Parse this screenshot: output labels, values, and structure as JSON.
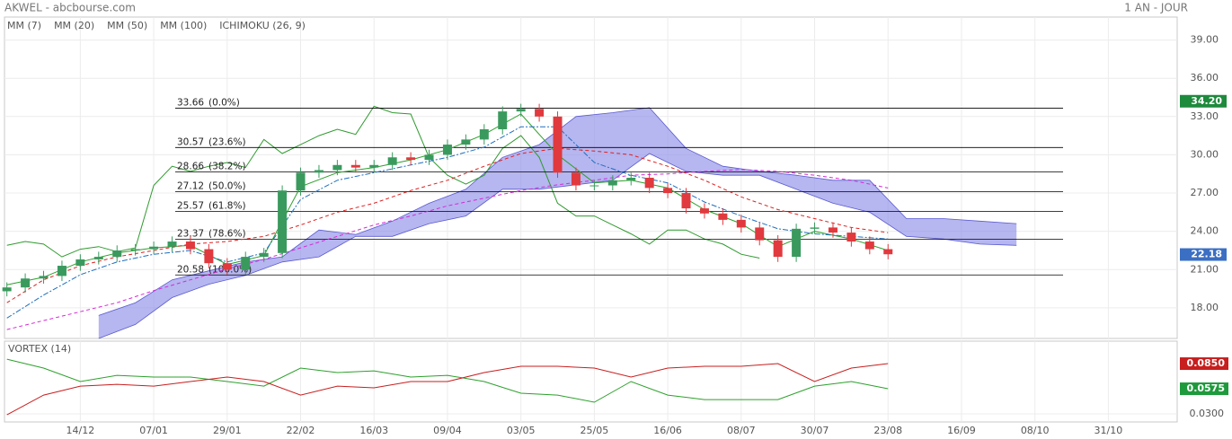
{
  "chart_data": {
    "type": "candlestick",
    "title": "AKWEL - abcbourse.com",
    "period": "1 AN - JOUR",
    "xlim": [
      -1.5,
      255
    ],
    "xticks": [
      {
        "value": 16,
        "label": "14/12"
      },
      {
        "value": 32,
        "label": "07/01"
      },
      {
        "value": 48,
        "label": "29/01"
      },
      {
        "value": 64,
        "label": "22/02"
      },
      {
        "value": 80,
        "label": "16/03"
      },
      {
        "value": 96,
        "label": "09/04"
      },
      {
        "value": 112,
        "label": "03/05"
      },
      {
        "value": 128,
        "label": "25/05"
      },
      {
        "value": 144,
        "label": "16/06"
      },
      {
        "value": 160,
        "label": "08/07"
      },
      {
        "value": 176,
        "label": "30/07"
      },
      {
        "value": 192,
        "label": "23/08"
      },
      {
        "value": 208,
        "label": "16/09"
      },
      {
        "value": 224,
        "label": "08/10"
      },
      {
        "value": 240,
        "label": "31/10"
      }
    ],
    "ylim": [
      15.6,
      40.8
    ],
    "yticks": [
      {
        "value": 18,
        "label": "18.00"
      },
      {
        "value": 21,
        "label": "21.00"
      },
      {
        "value": 24,
        "label": "24.00"
      },
      {
        "value": 27,
        "label": "27.00"
      },
      {
        "value": 30,
        "label": "30.00"
      },
      {
        "value": 33,
        "label": "33.00"
      },
      {
        "value": 36,
        "label": "36.00"
      },
      {
        "value": 39,
        "label": "39.00"
      }
    ],
    "grid": true,
    "candles": {
      "up_color": "#3a9a5e",
      "down_color": "#e0393e",
      "x": [
        0,
        4,
        8,
        12,
        16,
        20,
        24,
        28,
        32,
        36,
        40,
        44,
        48,
        52,
        56,
        60,
        64,
        68,
        72,
        76,
        80,
        84,
        88,
        92,
        96,
        100,
        104,
        108,
        112,
        116,
        120,
        124,
        128,
        132,
        136,
        140,
        144,
        148,
        152,
        156,
        160,
        164,
        168,
        172,
        176,
        180,
        184,
        188,
        192
      ],
      "open": [
        19.3,
        19.6,
        20.3,
        20.5,
        21.3,
        21.8,
        22.0,
        22.5,
        22.6,
        22.8,
        23.2,
        22.6,
        21.5,
        21.0,
        22.0,
        22.3,
        27.2,
        28.6,
        28.8,
        29.2,
        29.0,
        29.2,
        29.8,
        29.6,
        30.0,
        30.8,
        31.2,
        32.0,
        33.4,
        33.6,
        33.0,
        28.6,
        27.6,
        27.6,
        28.0,
        28.2,
        27.4,
        27.0,
        25.8,
        25.4,
        24.9,
        24.3,
        23.3,
        22.0,
        24.2,
        24.3,
        23.9,
        23.2,
        22.6
      ],
      "high": [
        20.0,
        20.7,
        20.9,
        21.7,
        22.2,
        22.4,
        22.9,
        23.0,
        23.2,
        23.6,
        23.6,
        23.0,
        21.9,
        22.4,
        22.7,
        27.6,
        29.0,
        29.2,
        29.6,
        29.6,
        29.6,
        30.2,
        30.2,
        30.4,
        31.2,
        31.6,
        32.4,
        33.8,
        34.0,
        34.0,
        33.4,
        29.0,
        28.0,
        28.4,
        28.6,
        28.6,
        27.8,
        27.4,
        26.2,
        25.8,
        25.3,
        24.7,
        23.7,
        24.6,
        24.7,
        24.7,
        24.3,
        23.6,
        23.0
      ],
      "low": [
        18.9,
        19.2,
        19.9,
        20.1,
        20.9,
        21.4,
        21.6,
        22.1,
        22.2,
        22.4,
        22.2,
        21.1,
        20.6,
        20.6,
        21.6,
        21.9,
        26.8,
        28.2,
        28.4,
        28.6,
        28.6,
        28.8,
        29.2,
        29.2,
        29.6,
        30.4,
        30.8,
        31.6,
        33.0,
        32.6,
        28.2,
        27.2,
        27.2,
        27.2,
        27.6,
        27.0,
        26.6,
        25.4,
        25.0,
        24.5,
        23.9,
        22.9,
        21.6,
        21.6,
        23.8,
        23.5,
        22.8,
        22.2,
        21.8
      ],
      "close": [
        19.6,
        20.3,
        20.5,
        21.3,
        21.8,
        22.0,
        22.5,
        22.6,
        22.8,
        23.2,
        22.6,
        21.5,
        21.0,
        22.0,
        22.3,
        27.2,
        28.6,
        28.8,
        29.2,
        29.0,
        29.2,
        29.8,
        29.6,
        30.0,
        30.8,
        31.2,
        32.0,
        33.4,
        33.6,
        33.0,
        28.6,
        27.6,
        27.6,
        28.0,
        28.2,
        27.4,
        27.0,
        25.8,
        25.4,
        24.9,
        24.3,
        23.3,
        22.0,
        24.2,
        24.3,
        23.9,
        23.2,
        22.6,
        22.2
      ]
    },
    "ma_x": [
      0,
      8,
      16,
      24,
      32,
      40,
      48,
      56,
      64,
      72,
      80,
      88,
      96,
      104,
      112,
      120,
      128,
      136,
      144,
      152,
      160,
      168,
      176,
      184,
      192
    ],
    "series": [
      {
        "name": "MM (7)",
        "color": "#2ca02c",
        "dash": "none",
        "values": [
          19.8,
          20.4,
          21.6,
          22.3,
          22.7,
          22.9,
          21.4,
          22.1,
          27.5,
          28.6,
          29.0,
          29.6,
          30.4,
          31.6,
          33.2,
          30.0,
          27.8,
          28.0,
          27.4,
          25.7,
          24.6,
          22.8,
          24.0,
          23.4,
          22.5
        ]
      },
      {
        "name": "MM (20)",
        "color": "#1f6fbf",
        "dash": "6,2,2,2",
        "values": [
          17.2,
          19.0,
          20.6,
          21.6,
          22.2,
          22.5,
          21.6,
          22.3,
          26.5,
          28.0,
          28.6,
          29.2,
          29.8,
          30.6,
          32.2,
          32.2,
          29.4,
          28.4,
          27.8,
          26.3,
          25.2,
          24.2,
          23.8,
          23.6,
          23.4
        ]
      },
      {
        "name": "MM (50)",
        "color": "#e02020",
        "dash": "4,3",
        "values": [
          18.4,
          20.2,
          21.3,
          22.0,
          22.5,
          23.0,
          23.2,
          23.6,
          24.5,
          25.5,
          26.2,
          27.2,
          28.0,
          29.1,
          30.1,
          30.5,
          30.3,
          30.0,
          29.1,
          28.0,
          26.7,
          25.7,
          25.0,
          24.3,
          23.9
        ]
      },
      {
        "name": "MM (100)",
        "color": "#d62ad6",
        "dash": "4,3",
        "values": [
          16.3,
          17.0,
          17.7,
          18.4,
          19.35,
          20.2,
          21.05,
          21.8,
          22.7,
          23.6,
          24.5,
          25.2,
          26.0,
          26.6,
          27.2,
          27.65,
          28.0,
          28.4,
          28.5,
          28.7,
          28.85,
          28.7,
          28.4,
          28.0,
          27.4
        ]
      }
    ],
    "ichimoku": {
      "name": "ICHIMOKU (26, 9)",
      "color": "#1f5fa8",
      "cloud_color": "#8f8fe8",
      "lagging_color": "#2f9a2f",
      "x": [
        20,
        28,
        36,
        44,
        52,
        60,
        68,
        76,
        84,
        92,
        100,
        108,
        116,
        124,
        132,
        140,
        148,
        156,
        164,
        172,
        180,
        188,
        196,
        204,
        212,
        220
      ],
      "span_a": [
        17.4,
        18.4,
        20.2,
        20.9,
        21.6,
        22.0,
        24.1,
        23.75,
        24.8,
        26.2,
        27.3,
        29.8,
        30.8,
        33.0,
        33.3,
        33.7,
        30.5,
        29.1,
        28.7,
        28.4,
        28.0,
        28.0,
        25.0,
        25.0,
        24.8,
        24.6
      ],
      "span_b": [
        15.6,
        16.7,
        18.8,
        19.85,
        20.55,
        21.6,
        22.0,
        23.6,
        23.6,
        24.6,
        25.2,
        27.3,
        27.3,
        27.65,
        28.0,
        30.1,
        28.7,
        28.4,
        28.4,
        27.3,
        26.2,
        25.5,
        23.6,
        23.4,
        23.0,
        22.9
      ],
      "lagging_x": [
        0,
        4,
        8,
        12,
        16,
        20,
        24,
        28,
        32,
        36,
        40,
        44,
        48,
        52,
        56,
        60,
        64,
        68,
        72,
        76,
        80,
        84,
        88,
        92,
        96,
        100,
        104,
        108,
        112,
        116,
        120,
        124,
        128,
        132,
        136,
        140,
        144,
        148,
        152,
        156,
        160,
        164
      ],
      "lagging": [
        22.9,
        23.2,
        23.0,
        22.0,
        22.6,
        22.8,
        22.4,
        22.7,
        27.6,
        29.1,
        28.7,
        29.1,
        29.4,
        29.0,
        31.2,
        30.1,
        30.8,
        31.5,
        32.0,
        31.6,
        33.8,
        33.3,
        33.2,
        29.8,
        28.4,
        27.7,
        28.4,
        30.5,
        31.5,
        29.8,
        26.2,
        25.2,
        25.2,
        24.5,
        23.8,
        23.0,
        24.1,
        24.1,
        23.4,
        23.0,
        22.2,
        21.9
      ]
    },
    "fibonacci": {
      "color": "#000000",
      "levels": [
        33.66,
        30.57,
        28.66,
        27.12,
        25.57,
        23.37,
        20.58
      ],
      "labels": [
        "(0.0%)",
        "(23.6%)",
        "(38.2%)",
        "(50.0%)",
        "(61.8%)",
        "(78.6%)",
        "(100.0%)"
      ]
    },
    "price_tags": [
      {
        "value": 34.2,
        "label": "34.20",
        "color": "#1e8a3c"
      },
      {
        "value": 22.18,
        "label": "22.18",
        "color": "#3b6fc4"
      }
    ],
    "vortex": {
      "title": "VORTEX (14)",
      "ylim": [
        0.0212,
        0.1096
      ],
      "yticks": [
        {
          "value": 0.03,
          "label": "0.0300"
        }
      ],
      "series": [
        {
          "color": "#2ca02c",
          "values": [
            0.0899,
            0.0801,
            0.0654,
            0.0722,
            0.0703,
            0.0703,
            0.0654,
            0.0604,
            0.0801,
            0.0752,
            0.0771,
            0.0703,
            0.0722,
            0.0654,
            0.0526,
            0.0506,
            0.0428,
            0.0654,
            0.0506,
            0.0457,
            0.0457,
            0.0457,
            0.0604,
            0.0654,
            0.0575
          ]
        },
        {
          "color": "#c81e1e",
          "values": [
            0.029,
            0.0506,
            0.0604,
            0.0624,
            0.0604,
            0.0654,
            0.0703,
            0.0654,
            0.0506,
            0.0604,
            0.0585,
            0.0654,
            0.0654,
            0.0752,
            0.0821,
            0.0821,
            0.0801,
            0.0703,
            0.0801,
            0.0821,
            0.0821,
            0.085,
            0.0654,
            0.0801,
            0.085
          ]
        }
      ],
      "tags": [
        {
          "value": 0.085,
          "label": "0.0850",
          "color": "#c81e1e"
        },
        {
          "value": 0.0575,
          "label": "0.0575",
          "color": "#1e9a3c"
        }
      ]
    }
  }
}
